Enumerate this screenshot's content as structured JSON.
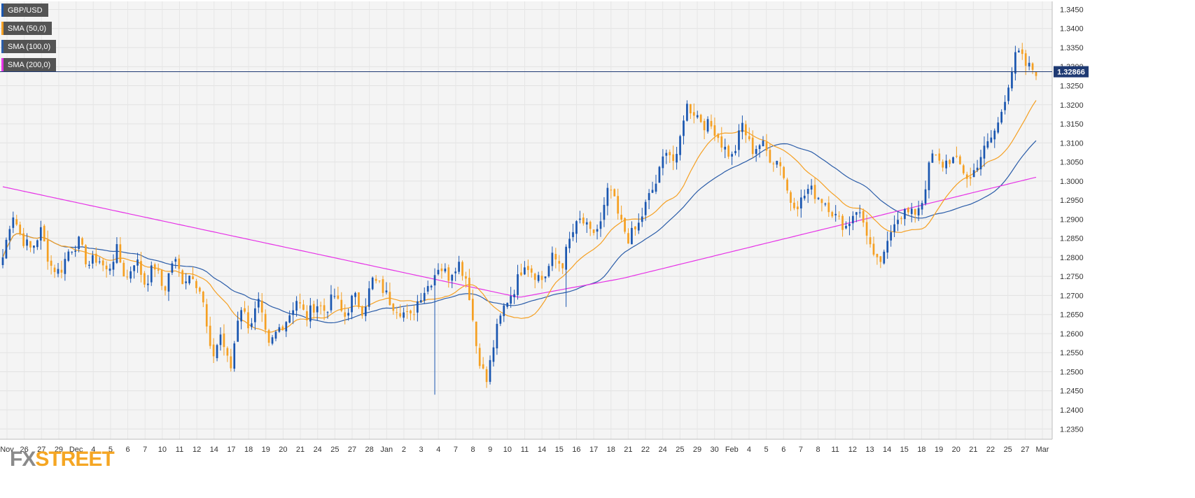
{
  "chart_data": {
    "type": "candlestick",
    "symbol": "GBP/USD",
    "last_price": "1.32866",
    "ylim": [
      1.2323,
      1.3471
    ],
    "y_ticks": [
      "1.3450",
      "1.3400",
      "1.3350",
      "1.3300",
      "1.3250",
      "1.3200",
      "1.3150",
      "1.3100",
      "1.3050",
      "1.3000",
      "1.2950",
      "1.2900",
      "1.2850",
      "1.2800",
      "1.2750",
      "1.2700",
      "1.2650",
      "1.2600",
      "1.2550",
      "1.2500",
      "1.2450",
      "1.2400",
      "1.2350"
    ],
    "x_ticks": [
      "Nov",
      "26",
      "27",
      "29",
      "Dec",
      "4",
      "5",
      "6",
      "7",
      "10",
      "11",
      "12",
      "14",
      "17",
      "18",
      "19",
      "20",
      "21",
      "24",
      "25",
      "27",
      "28",
      "Jan",
      "2",
      "3",
      "4",
      "7",
      "8",
      "9",
      "10",
      "11",
      "14",
      "15",
      "16",
      "17",
      "18",
      "21",
      "22",
      "24",
      "25",
      "29",
      "30",
      "Feb",
      "4",
      "5",
      "6",
      "7",
      "8",
      "11",
      "12",
      "13",
      "14",
      "15",
      "18",
      "19",
      "20",
      "21",
      "22",
      "25",
      "27",
      "Mar"
    ],
    "legend": [
      {
        "name": "GBP/USD",
        "color": "#1a56b0"
      },
      {
        "name": "SMA (50,0)",
        "color": "#f5a023"
      },
      {
        "name": "SMA (100,0)",
        "color": "#2a5ca8"
      },
      {
        "name": "SMA (200,0)",
        "color": "#e632e6"
      }
    ],
    "colors": {
      "up": "#1a56b0",
      "down": "#f5a023",
      "sma50": "#f5a023",
      "sma100": "#2a5ca8",
      "sma200": "#e632e6",
      "price_line": "#1f3a73"
    },
    "anchors": [
      1.28,
      1.292,
      1.285,
      1.282,
      1.287,
      1.278,
      1.276,
      1.282,
      1.284,
      1.278,
      1.28,
      1.276,
      1.282,
      1.274,
      1.28,
      1.273,
      1.278,
      1.271,
      1.28,
      1.274,
      1.276,
      1.27,
      1.253,
      1.26,
      1.25,
      1.268,
      1.262,
      1.268,
      1.256,
      1.261,
      1.264,
      1.269,
      1.264,
      1.268,
      1.266,
      1.27,
      1.264,
      1.27,
      1.266,
      1.274,
      1.272,
      1.268,
      1.266,
      1.264,
      1.27,
      1.273,
      1.278,
      1.275,
      1.279,
      1.274,
      1.256,
      1.247,
      1.26,
      1.268,
      1.272,
      1.279,
      1.276,
      1.274,
      1.28,
      1.278,
      1.286,
      1.29,
      1.286,
      1.288,
      1.299,
      1.29,
      1.285,
      1.288,
      1.295,
      1.3,
      1.309,
      1.304,
      1.32,
      1.318,
      1.315,
      1.314,
      1.309,
      1.306,
      1.315,
      1.308,
      1.31,
      1.306,
      1.305,
      1.295,
      1.294,
      1.298,
      1.296,
      1.294,
      1.29,
      1.288,
      1.293,
      1.288,
      1.278,
      1.28,
      1.29,
      1.292,
      1.291,
      1.295,
      1.307,
      1.304,
      1.306,
      1.304,
      1.3,
      1.306,
      1.31,
      1.315,
      1.325,
      1.334,
      1.33,
      1.329
    ]
  }
}
